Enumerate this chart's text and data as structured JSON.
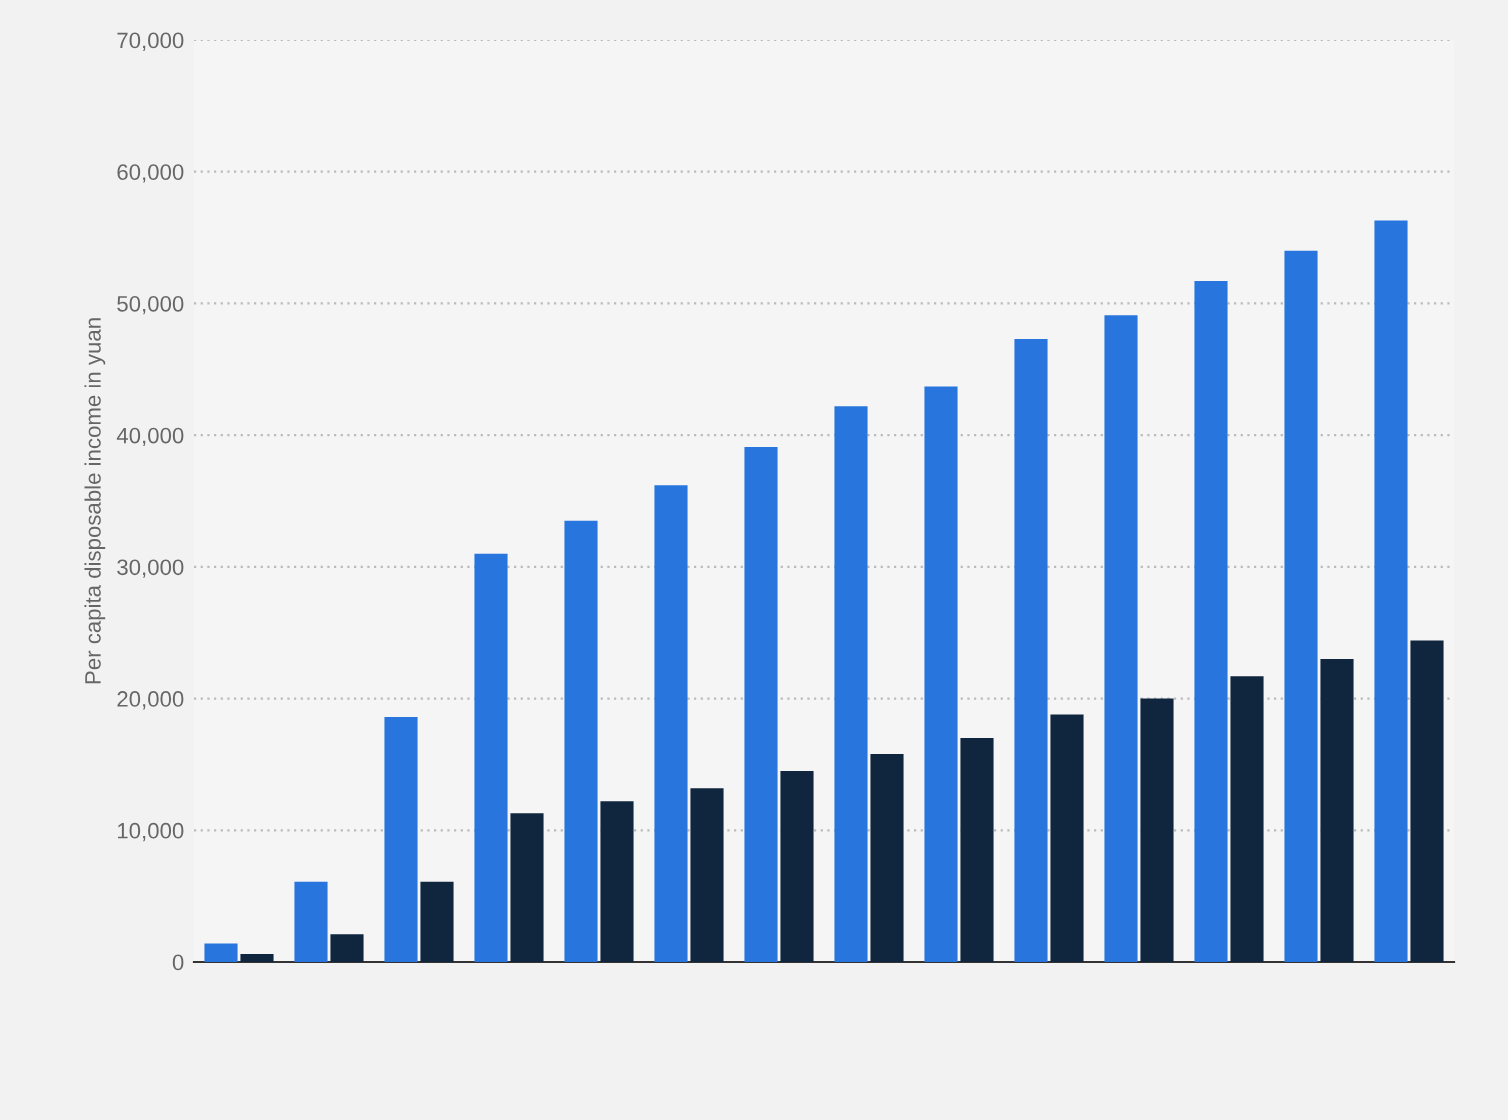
{
  "chart_data": {
    "type": "bar",
    "ylabel": "Per capita disposable income in yuan",
    "categories": [
      null,
      null,
      null,
      null,
      null,
      null,
      null,
      null,
      null,
      null,
      null,
      null,
      null,
      null
    ],
    "series": [
      {
        "color": "#2876dd",
        "values": [
          1400,
          6100,
          18600,
          31000,
          33500,
          36200,
          39100,
          42200,
          43700,
          47300,
          49100,
          51700,
          54000,
          56300
        ]
      },
      {
        "color": "#10263e",
        "values": [
          600,
          2100,
          6100,
          11300,
          12200,
          13200,
          14500,
          15800,
          17000,
          18800,
          20000,
          21700,
          23000,
          24400
        ]
      }
    ],
    "ylim": [
      0,
      70000
    ],
    "yticks": [
      {
        "value": 0,
        "label": "0"
      },
      {
        "value": 10000,
        "label": "10,000"
      },
      {
        "value": 20000,
        "label": "20,000"
      },
      {
        "value": 30000,
        "label": "30,000"
      },
      {
        "value": 40000,
        "label": "40,000"
      },
      {
        "value": 50000,
        "label": "50,000"
      },
      {
        "value": 60000,
        "label": "60,000"
      },
      {
        "value": 70000,
        "label": "70,000"
      }
    ],
    "grid": "y",
    "tick_labels": "y",
    "legend": false
  }
}
